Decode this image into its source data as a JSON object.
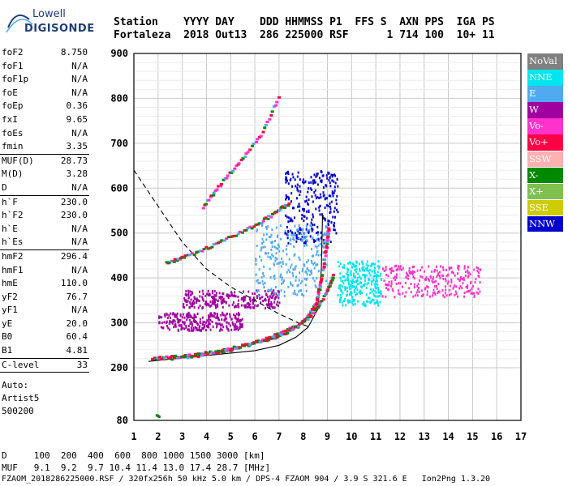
{
  "logo": {
    "line1": "Lowell",
    "line2": "DIGISONDE"
  },
  "header": {
    "line1": "Station    YYYY DAY    DDD HHMMSS P1  FFS S  AXN PPS  IGA PS",
    "line2": "Fortaleza  2018 Out13  286 225000 RSF      1 714 100  10+ 11"
  },
  "params": {
    "group1": [
      {
        "label": "foF2",
        "value": "8.750"
      },
      {
        "label": "foF1",
        "value": "N/A"
      },
      {
        "label": "foF1p",
        "value": "N/A"
      },
      {
        "label": "foE",
        "value": "N/A"
      },
      {
        "label": "foEp",
        "value": "0.36"
      },
      {
        "label": "fxI",
        "value": "9.65"
      },
      {
        "label": "foEs",
        "value": "N/A"
      },
      {
        "label": "fmin",
        "value": "3.35"
      }
    ],
    "group2": [
      {
        "label": "MUF(D)",
        "value": "28.73"
      },
      {
        "label": "M(D)",
        "value": "3.28"
      },
      {
        "label": "D",
        "value": "N/A"
      }
    ],
    "group3": [
      {
        "label": "h`F",
        "value": "230.0"
      },
      {
        "label": "h`F2",
        "value": "230.0"
      },
      {
        "label": "h`E",
        "value": "N/A"
      },
      {
        "label": "h`Es",
        "value": "N/A"
      }
    ],
    "group4": [
      {
        "label": "hmF2",
        "value": "296.4"
      },
      {
        "label": "hmF1",
        "value": "N/A"
      },
      {
        "label": "hmE",
        "value": "110.0"
      },
      {
        "label": "yF2",
        "value": "76.7"
      },
      {
        "label": "yF1",
        "value": "N/A"
      },
      {
        "label": "yE",
        "value": "20.0"
      },
      {
        "label": "B0",
        "value": "60.4"
      },
      {
        "label": "B1",
        "value": "4.81"
      }
    ],
    "group5": [
      {
        "label": "C-level",
        "value": "33"
      }
    ]
  },
  "auto": {
    "line1": "Auto:",
    "line2": "Artist5",
    "line3": "500200"
  },
  "legend": [
    {
      "label": "NoVal",
      "color": "#808080"
    },
    {
      "label": "NNE",
      "color": "#00e5ee"
    },
    {
      "label": "E",
      "color": "#4faaf0"
    },
    {
      "label": "W",
      "color": "#a000a0"
    },
    {
      "label": "Vo-",
      "color": "#ff33cc"
    },
    {
      "label": "Vo+",
      "color": "#ff0044"
    },
    {
      "label": "SSW",
      "color": "#ffb0b0"
    },
    {
      "label": "X-",
      "color": "#008800"
    },
    {
      "label": "X+",
      "color": "#7fc050"
    },
    {
      "label": "SSE",
      "color": "#cccc00"
    },
    {
      "label": "NNW",
      "color": "#0000cc"
    }
  ],
  "footer": {
    "line1": "D     100  200  400  600  800 1000 1500 3000 [km]",
    "line2": "MUF   9.1  9.2  9.7 10.4 11.4 13.0 17.4 28.7 [MHz]",
    "line3": "FZAOM_2018286225000.RSF / 320fx256h 50 kHz 5.0 km / DPS-4 FZAOM 904 / 3.9 S 321.6 E   Ion2Png 1.3.20"
  },
  "chart_data": {
    "type": "scatter",
    "title": "",
    "xlabel": "",
    "ylabel": "",
    "xlim": [
      1,
      17
    ],
    "ylim": [
      80,
      900
    ],
    "x_ticks": [
      "1",
      "2",
      "3",
      "4",
      "5",
      "6",
      "7",
      "8",
      "9",
      "10",
      "11",
      "12",
      "13",
      "14",
      "15",
      "16",
      "17"
    ],
    "y_ticks": [
      "80",
      "200",
      "300",
      "400",
      "500",
      "600",
      "700",
      "800",
      "900"
    ],
    "grid": true,
    "legend_position": "right",
    "traces": [
      {
        "name": "o-trace F2 (main)",
        "color": "#ff0044",
        "width": 3,
        "points": [
          [
            1.7,
            222
          ],
          [
            2.5,
            226
          ],
          [
            3.5,
            231
          ],
          [
            4.5,
            240
          ],
          [
            5.5,
            252
          ],
          [
            6.5,
            268
          ],
          [
            7.2,
            283
          ],
          [
            7.8,
            300
          ],
          [
            8.2,
            320
          ],
          [
            8.5,
            350
          ],
          [
            8.7,
            400
          ],
          [
            8.9,
            470
          ],
          [
            9.0,
            520
          ]
        ]
      },
      {
        "name": "x-trace F2",
        "color": "#008800",
        "width": 3,
        "points": [
          [
            2.5,
            224
          ],
          [
            3.5,
            229
          ],
          [
            4.5,
            238
          ],
          [
            5.5,
            250
          ],
          [
            6.5,
            265
          ],
          [
            7.3,
            282
          ],
          [
            8.0,
            305
          ],
          [
            8.5,
            335
          ],
          [
            9.0,
            380
          ],
          [
            9.2,
            410
          ]
        ]
      },
      {
        "name": "F2 second hop",
        "color": "#008800",
        "width": 3,
        "points": [
          [
            2.3,
            436
          ],
          [
            3.0,
            448
          ],
          [
            4.0,
            470
          ],
          [
            5.0,
            495
          ],
          [
            6.0,
            520
          ],
          [
            6.8,
            548
          ],
          [
            7.4,
            570
          ]
        ]
      },
      {
        "name": "third hop",
        "color": "#ff33cc",
        "width": 2,
        "points": [
          [
            3.8,
            560
          ],
          [
            4.5,
            610
          ],
          [
            5.3,
            660
          ],
          [
            6.2,
            720
          ],
          [
            7.0,
            812
          ]
        ]
      }
    ],
    "profile_curves": [
      {
        "name": "true height profile",
        "style": "solid",
        "points": [
          [
            1.6,
            214
          ],
          [
            3,
            222
          ],
          [
            4.5,
            230
          ],
          [
            6,
            238
          ],
          [
            7,
            250
          ],
          [
            7.7,
            268
          ],
          [
            8.2,
            290
          ],
          [
            8.6,
            330
          ],
          [
            8.75,
            420
          ],
          [
            8.8,
            540
          ]
        ]
      },
      {
        "name": "dashed bound",
        "style": "dashed",
        "points": [
          [
            1,
            640
          ],
          [
            2,
            560
          ],
          [
            3,
            480
          ],
          [
            4,
            420
          ],
          [
            5,
            380
          ],
          [
            6,
            350
          ],
          [
            7,
            320
          ],
          [
            7.8,
            300
          ],
          [
            8.3,
            290
          ]
        ]
      }
    ],
    "clouds": [
      {
        "name": "purple band 1",
        "color": "#a000a0",
        "x": [
          3.0,
          7.0
        ],
        "y": [
          335,
          375
        ]
      },
      {
        "name": "purple band 2",
        "color": "#a000a0",
        "x": [
          2.0,
          5.5
        ],
        "y": [
          285,
          325
        ]
      },
      {
        "name": "blue spread F",
        "color": "#0000cc",
        "x": [
          7.2,
          9.4
        ],
        "y": [
          480,
          640
        ]
      },
      {
        "name": "E cloud",
        "color": "#4faaf0",
        "x": [
          6.0,
          9.0
        ],
        "y": [
          360,
          520
        ]
      },
      {
        "name": "spread above 9 MHz",
        "color": "#00e5ee",
        "x": [
          9.4,
          11.2
        ],
        "y": [
          340,
          440
        ]
      },
      {
        "name": "spread right",
        "color": "#ff33cc",
        "x": [
          11.2,
          15.3
        ],
        "y": [
          360,
          430
        ]
      }
    ],
    "misc_points": [
      [
        1.9,
        83
      ],
      [
        2.0,
        80
      ],
      [
        1.95,
        82
      ]
    ]
  }
}
